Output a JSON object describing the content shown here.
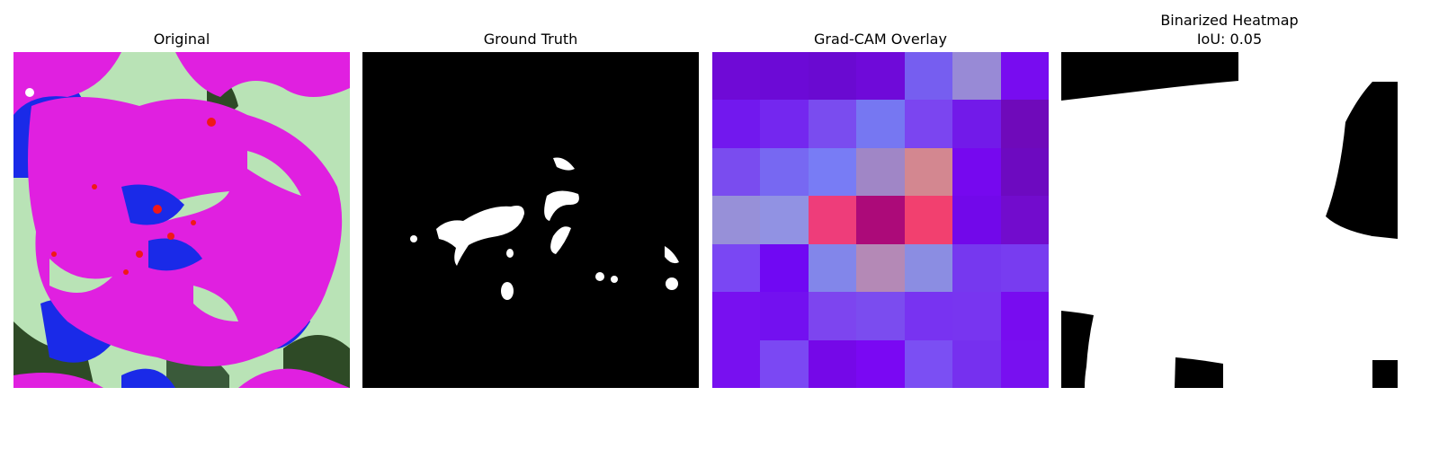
{
  "panels": {
    "original": {
      "title": "Original"
    },
    "ground_truth": {
      "title": "Ground Truth"
    },
    "gradcam": {
      "title": "Grad-CAM Overlay",
      "grid_colors": [
        [
          "#6f0ad6",
          "#6c0ad6",
          "#6a0ad1",
          "#6f0ad9",
          "#765ef0",
          "#988ad6",
          "#780cf0"
        ],
        [
          "#7218ee",
          "#7427ef",
          "#7a4cef",
          "#7677f2",
          "#7b45f0",
          "#721ae9",
          "#6f0aba"
        ],
        [
          "#7a4cef",
          "#7768f2",
          "#787cf5",
          "#a086c6",
          "#d38790",
          "#7608ef",
          "#6d0ac0"
        ],
        [
          "#9790d8",
          "#9192e3",
          "#ee3d7a",
          "#ac0a79",
          "#f2406f",
          "#7208ea",
          "#720ccd"
        ],
        [
          "#7a47f3",
          "#7008f3",
          "#8286ea",
          "#b489b6",
          "#8b8de2",
          "#7638ef",
          "#783cf0"
        ],
        [
          "#7810f0",
          "#7310f0",
          "#7d45ef",
          "#7b4cef",
          "#7833f1",
          "#7835f0",
          "#780cf0"
        ],
        [
          "#7810f0",
          "#7b48f3",
          "#7508e8",
          "#7a08f3",
          "#7b4ff3",
          "#7630ef",
          "#7810f0"
        ]
      ]
    },
    "binarized": {
      "title_line1": "Binarized Heatmap",
      "title_line2": "IoU: 0.05"
    }
  },
  "colors": {
    "magenta": "#e020e0",
    "pale_green": "#b9e3b6",
    "blue": "#1a2ae8",
    "dark_green": "#2e4a26",
    "red": "#f01818",
    "mask_bg": "#000000",
    "mask_fg": "#ffffff"
  }
}
